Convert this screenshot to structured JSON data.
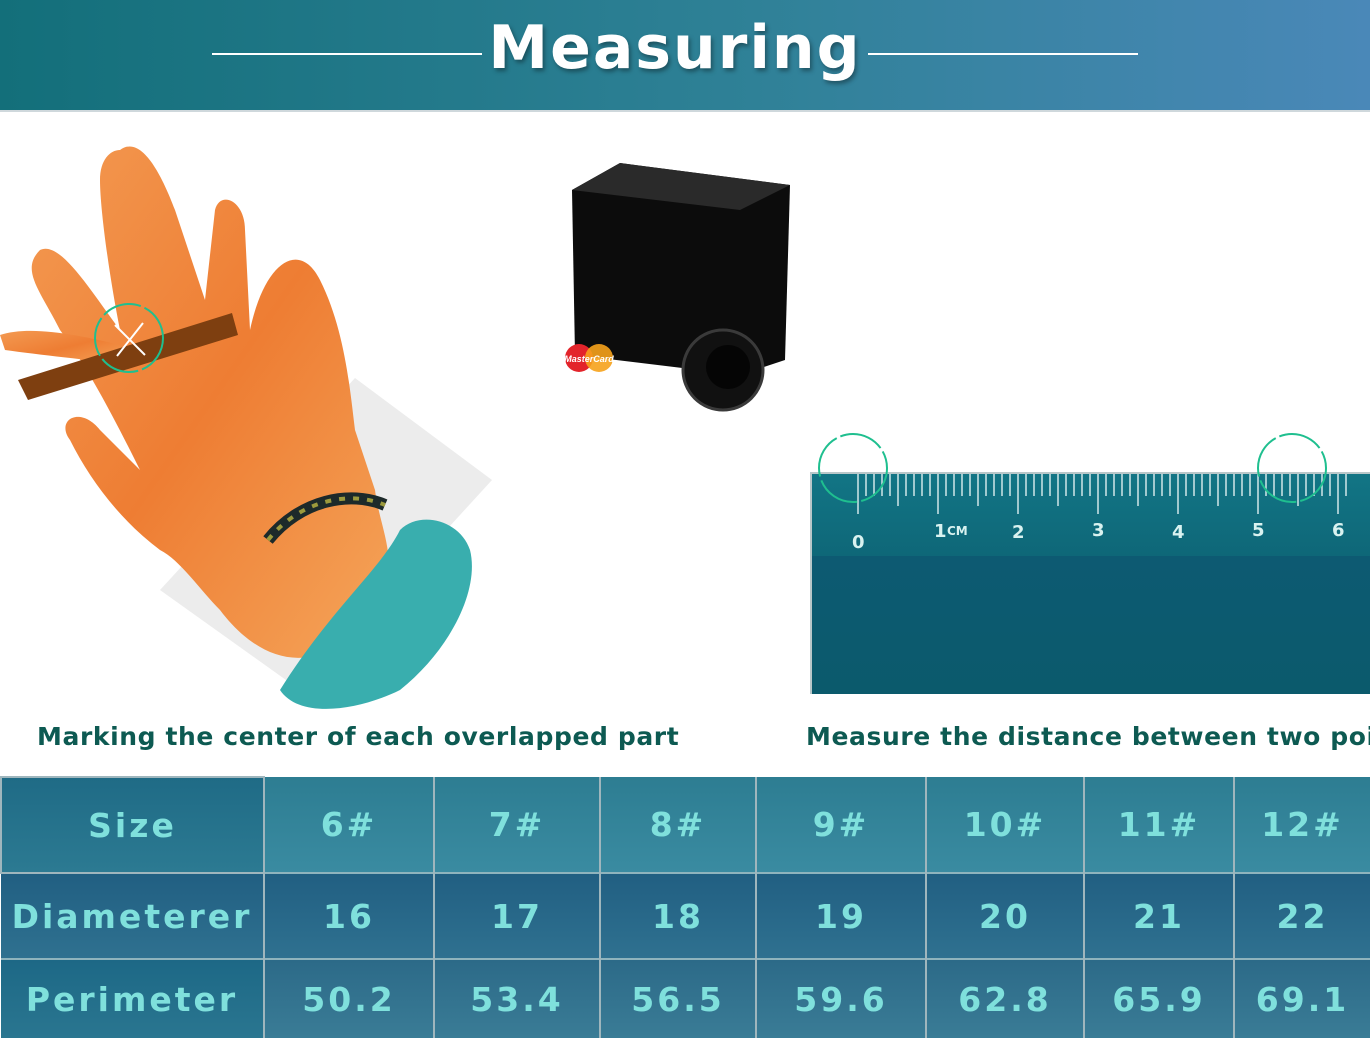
{
  "header": {
    "title": "Measuring"
  },
  "captions": {
    "left": "Marking the center of each overlapped part",
    "right": "Measure the distance between two points"
  },
  "ruler": {
    "labels": [
      "0",
      "1",
      "CM",
      "2",
      "3",
      "4",
      "5",
      "6"
    ]
  },
  "card_logo": {
    "text": "MasterCard"
  },
  "size_table": {
    "row_headers": [
      "Size",
      "Diameterer",
      "Perimeter"
    ],
    "sizes": [
      "6#",
      "7#",
      "8#",
      "9#",
      "10#",
      "11#",
      "12#"
    ],
    "diameters": [
      "16",
      "17",
      "18",
      "19",
      "20",
      "21",
      "22"
    ],
    "perimeters": [
      "50.2",
      "53.4",
      "56.5",
      "59.6",
      "62.8",
      "65.9",
      "69.1"
    ]
  },
  "colors": {
    "banner_start": "#136f7a",
    "banner_end": "#4a88b8",
    "caption_text": "#0d5a52",
    "table_text": "#7fe0dc",
    "marker_circle": "#1fbf8f",
    "hand": "#f08a3c",
    "sleeve": "#39aeae"
  }
}
